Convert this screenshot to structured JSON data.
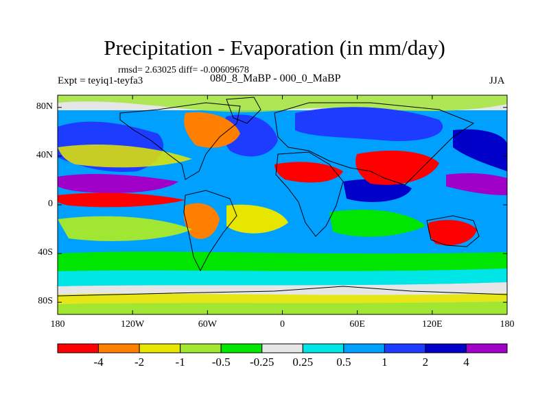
{
  "title": "Precipitation - Evaporation (in mm/day)",
  "stats": "rmsd= 2.63025 diff= -0.00609678",
  "experiment": "Expt = teyiq1-teyfa3",
  "subtitle": "080_8_MaBP - 000_0_MaBP",
  "season": "JJA",
  "y_ticks": [
    {
      "label": "80N",
      "lat": 80
    },
    {
      "label": "40N",
      "lat": 40
    },
    {
      "label": "0",
      "lat": 0
    },
    {
      "label": "40S",
      "lat": -40
    },
    {
      "label": "80S",
      "lat": -80
    }
  ],
  "x_ticks": [
    {
      "label": "180",
      "lon": -180
    },
    {
      "label": "120W",
      "lon": -120
    },
    {
      "label": "60W",
      "lon": -60
    },
    {
      "label": "0",
      "lon": 0
    },
    {
      "label": "60E",
      "lon": 60
    },
    {
      "label": "120E",
      "lon": 120
    },
    {
      "label": "180",
      "lon": 180
    }
  ],
  "colorbar": {
    "colors": [
      "#ff0000",
      "#ff7f00",
      "#e6e600",
      "#a0e632",
      "#00e600",
      "#e6e6e6",
      "#00e6e6",
      "#00a0ff",
      "#1e3cff",
      "#0000c8",
      "#a000c8"
    ],
    "labels": [
      "-4",
      "-2",
      "-1",
      "-0.5",
      "-0.25",
      "0.25",
      "0.5",
      "1",
      "2",
      "4"
    ]
  }
}
